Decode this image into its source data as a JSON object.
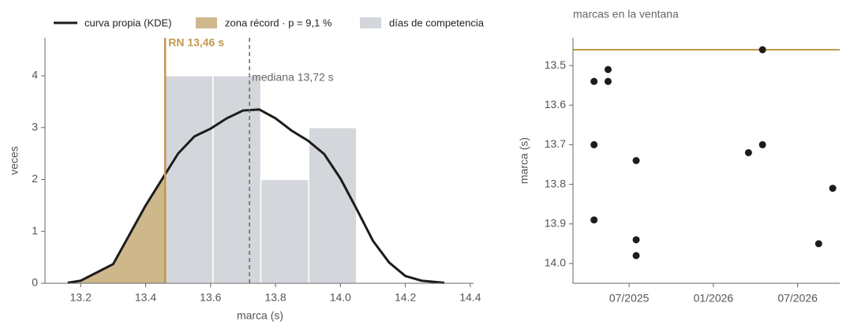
{
  "chart_data": [
    {
      "type": "histogram",
      "bins": [
        13.46,
        13.6075,
        13.755,
        13.9025,
        14.05
      ],
      "values": [
        4,
        4,
        2,
        3
      ],
      "color": "#d3d6db",
      "bars_name": "días de competencia",
      "kde": {
        "name": "curva propia (KDE)",
        "color": "#1c1c1c",
        "x": [
          13.16,
          13.2,
          13.3,
          13.4,
          13.46,
          13.5,
          13.55,
          13.6,
          13.65,
          13.7,
          13.75,
          13.8,
          13.85,
          13.9,
          13.95,
          14.0,
          14.05,
          14.1,
          14.15,
          14.2,
          14.25,
          14.32
        ],
        "y": [
          0.01,
          0.05,
          0.37,
          1.5,
          2.1,
          2.5,
          2.83,
          2.98,
          3.18,
          3.33,
          3.35,
          3.18,
          2.94,
          2.75,
          2.49,
          2.02,
          1.43,
          0.82,
          0.4,
          0.14,
          0.05,
          0.01
        ]
      },
      "record_zone": {
        "name": "zona récord · p = 9,1 %",
        "color": "#cfb78c"
      },
      "record": {
        "value": 13.46,
        "label": "RN 13,46 s",
        "color": "#c4964e"
      },
      "median": {
        "value": 13.72,
        "label": "mediana 13,72 s",
        "color": "#666666"
      },
      "xlabel": "marca (s)",
      "ylabel": "veces",
      "xlim": [
        13.09,
        14.41
      ],
      "ylim": [
        0,
        4.73
      ],
      "xticks": [
        13.2,
        13.4,
        13.6,
        13.8,
        {
          "value": 14.0,
          "label": "14.0"
        },
        14.2,
        14.4
      ],
      "yticks": [
        0,
        1,
        2,
        3,
        4
      ]
    },
    {
      "type": "scatter",
      "title": "marcas en la ventana",
      "x": [
        "2025-04",
        "2025-04",
        "2025-05",
        "2025-05",
        "2025-04",
        "2025-07",
        "2025-07",
        "2025-07",
        "2026-03",
        "2026-04",
        "2026-04",
        "2026-08",
        "2026-09"
      ],
      "values": [
        13.54,
        13.7,
        13.51,
        13.54,
        13.89,
        13.74,
        13.98,
        13.94,
        13.72,
        13.46,
        13.7,
        13.95,
        13.81
      ],
      "color": "#1c1c1c",
      "ylabel": "marca (s)",
      "ylim": [
        13.43,
        14.05
      ],
      "y_inverted": true,
      "yticks": [
        13.5,
        13.6,
        13.7,
        13.8,
        13.9,
        {
          "value": 14.0,
          "label": "14.0"
        }
      ],
      "xlim": [
        "2025-03",
        "2026-10"
      ],
      "xticks": [
        {
          "value": "2025-07",
          "label": "07/2025"
        },
        {
          "value": "2026-01",
          "label": "01/2026"
        },
        {
          "value": "2026-07",
          "label": "07/2026"
        }
      ],
      "record": {
        "value": 13.46,
        "color": "#c4964e"
      }
    }
  ]
}
